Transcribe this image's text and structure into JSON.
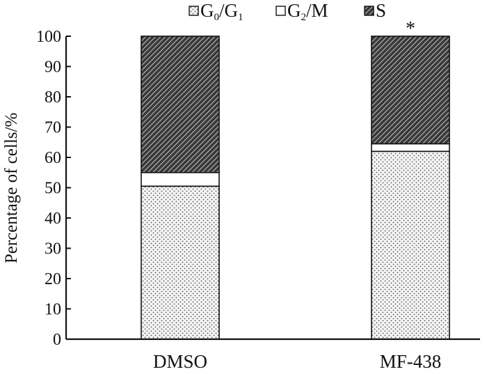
{
  "chart_data": {
    "type": "bar",
    "stacked": true,
    "categories": [
      "DMSO",
      "MF-438"
    ],
    "series": [
      {
        "name": "G0/G1",
        "pattern": "dots",
        "values": [
          50.5,
          62
        ]
      },
      {
        "name": "G2/M",
        "pattern": "blank",
        "values": [
          4.5,
          2.5
        ]
      },
      {
        "name": "S",
        "pattern": "hatch",
        "values": [
          45,
          35.5
        ]
      }
    ],
    "legend": [
      {
        "base": "G",
        "sub": "0",
        "sep": "/",
        "base2": "G",
        "sub2": "1"
      },
      {
        "base": "G",
        "sub": "2",
        "sep": "/",
        "base2": "M",
        "sub2": ""
      },
      {
        "base": "S",
        "sub": "",
        "sep": "",
        "base2": "",
        "sub2": ""
      }
    ],
    "ylabel": "Percentage of cells/%",
    "ylim": [
      0,
      100
    ],
    "yticks": [
      0,
      10,
      20,
      30,
      40,
      50,
      60,
      70,
      80,
      90,
      100
    ],
    "legend_position": "top",
    "annotations": [
      {
        "category": "MF-438",
        "text": "*"
      }
    ],
    "grid": false
  }
}
